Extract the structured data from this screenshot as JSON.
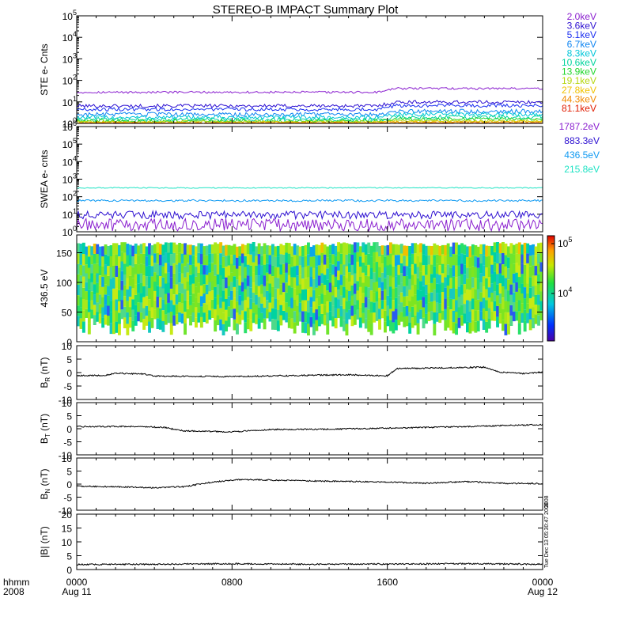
{
  "title": "STEREO-B IMPACT Summary Plot",
  "chart_data": [
    {
      "type": "line",
      "name": "ste",
      "ylabel": "STE e- Cnts",
      "yscale": "log",
      "ylim": [
        1,
        100000
      ],
      "yticks": [
        {
          "base": "10",
          "exp": "0"
        },
        {
          "base": "10",
          "exp": "1"
        },
        {
          "base": "10",
          "exp": "2"
        },
        {
          "base": "10",
          "exp": "3"
        },
        {
          "base": "10",
          "exp": "4"
        },
        {
          "base": "10",
          "exp": "5"
        }
      ],
      "series": [
        {
          "name": "2.0keV",
          "color": "#8a1fcf",
          "level": 28,
          "rise": 1.5,
          "noise": 0.05
        },
        {
          "name": "3.6keV",
          "color": "#2c0fd1",
          "level": 6.5,
          "rise": 1.5,
          "noise": 0.08
        },
        {
          "name": "5.1keV",
          "color": "#1a2ef0",
          "level": 4.5,
          "rise": 1.5,
          "noise": 0.08
        },
        {
          "name": "6.7keV",
          "color": "#0f85f2",
          "level": 2.6,
          "rise": 1.4,
          "noise": 0.1
        },
        {
          "name": "8.3keV",
          "color": "#00c6d9",
          "level": 1.9,
          "rise": 1.4,
          "noise": 0.1
        },
        {
          "name": "10.6keV",
          "color": "#00d49c",
          "level": 1.5,
          "rise": 1.3,
          "noise": 0.1
        },
        {
          "name": "13.9keV",
          "color": "#1ed62a",
          "level": 1.3,
          "rise": 1.2,
          "noise": 0.08
        },
        {
          "name": "19.1keV",
          "color": "#b6d60f",
          "level": 1.2,
          "rise": 1.1,
          "noise": 0.05
        },
        {
          "name": "27.8keV",
          "color": "#f0c200",
          "level": 1.1,
          "rise": 1.1,
          "noise": 0.04
        },
        {
          "name": "44.3keV",
          "color": "#f08a00",
          "level": 1.05,
          "rise": 1.05,
          "noise": 0.03
        },
        {
          "name": "81.1keV",
          "color": "#e01c00",
          "level": 1.0,
          "rise": 1.0,
          "noise": 0.02
        }
      ]
    },
    {
      "type": "line",
      "name": "swea",
      "ylabel": "SWEA e- cnts",
      "yscale": "log",
      "ylim": [
        1,
        1000000
      ],
      "yticks": [
        {
          "base": "10",
          "exp": "0"
        },
        {
          "base": "10",
          "exp": "1"
        },
        {
          "base": "10",
          "exp": "2"
        },
        {
          "base": "10",
          "exp": "3"
        },
        {
          "base": "10",
          "exp": "4"
        },
        {
          "base": "10",
          "exp": "5"
        },
        {
          "base": "10",
          "exp": "6"
        }
      ],
      "series": [
        {
          "name": "1787.2eV",
          "color": "#8a1fcf",
          "level": 2.5,
          "noise": 0.35
        },
        {
          "name": "883.3eV",
          "color": "#2c0fd1",
          "level": 9,
          "noise": 0.22
        },
        {
          "name": "436.5eV",
          "color": "#0f9af2",
          "level": 60,
          "noise": 0.06
        },
        {
          "name": "215.8eV",
          "color": "#1fe3c4",
          "level": 320,
          "noise": 0.03
        }
      ]
    },
    {
      "type": "heatmap",
      "name": "pad",
      "ylabel": "436.5 eV",
      "ylim": [
        0,
        180
      ],
      "yticks": [
        "0",
        "50",
        "100",
        "150"
      ],
      "colorbar": {
        "ticks": [
          {
            "base": "10",
            "exp": "5"
          },
          {
            "base": "10",
            "exp": "4"
          }
        ]
      }
    },
    {
      "type": "line",
      "name": "br",
      "ylabel": "B",
      "ylabel_sub": "R",
      "ylabel_unit": "(nT)",
      "ylim": [
        -10,
        10
      ],
      "yticks": [
        "10",
        "5",
        "0",
        "-5",
        "-10"
      ],
      "keypoints": [
        [
          0,
          -1.2
        ],
        [
          1.5,
          -1.0
        ],
        [
          2,
          -0.2
        ],
        [
          3.5,
          -0.6
        ],
        [
          4,
          -1.3
        ],
        [
          8,
          -1.5
        ],
        [
          12,
          -1.0
        ],
        [
          14,
          -0.8
        ],
        [
          16,
          -1.2
        ],
        [
          16.5,
          1.5
        ],
        [
          21,
          2.0
        ],
        [
          21.8,
          0.2
        ],
        [
          23,
          -0.4
        ],
        [
          24,
          0.2
        ]
      ]
    },
    {
      "type": "line",
      "name": "bt",
      "ylabel": "B",
      "ylabel_sub": "T",
      "ylabel_unit": "(nT)",
      "ylim": [
        -10,
        10
      ],
      "yticks": [
        "10",
        "5",
        "0",
        "-5",
        "-10"
      ],
      "keypoints": [
        [
          0,
          0.8
        ],
        [
          3,
          0.9
        ],
        [
          4.5,
          0.5
        ],
        [
          5.5,
          -0.8
        ],
        [
          8,
          -1.2
        ],
        [
          10,
          -0.3
        ],
        [
          13,
          -0.2
        ],
        [
          16,
          0.2
        ],
        [
          20,
          0.8
        ],
        [
          24,
          1.6
        ]
      ]
    },
    {
      "type": "line",
      "name": "bn",
      "ylabel": "B",
      "ylabel_sub": "N",
      "ylabel_unit": "(nT)",
      "ylim": [
        -10,
        10
      ],
      "yticks": [
        "10",
        "5",
        "0",
        "-5",
        "-10"
      ],
      "keypoints": [
        [
          0,
          -0.8
        ],
        [
          2,
          -1.0
        ],
        [
          4,
          -1.4
        ],
        [
          5.5,
          -1.0
        ],
        [
          7,
          0.8
        ],
        [
          8.5,
          1.8
        ],
        [
          12,
          1.2
        ],
        [
          16,
          0.8
        ],
        [
          18,
          0.3
        ],
        [
          20,
          1.0
        ],
        [
          22,
          0.3
        ],
        [
          24,
          0.2
        ]
      ]
    },
    {
      "type": "line",
      "name": "bmag",
      "ylabel": "|B|",
      "ylabel_unit": "(nT)",
      "ylim": [
        0,
        20
      ],
      "yticks": [
        "20",
        "15",
        "10",
        "5",
        "0"
      ],
      "keypoints": [
        [
          0,
          1.8
        ],
        [
          4,
          1.9
        ],
        [
          8,
          2.1
        ],
        [
          12,
          1.9
        ],
        [
          16,
          2.0
        ],
        [
          20,
          2.1
        ],
        [
          24,
          1.9
        ]
      ]
    }
  ],
  "xaxis": {
    "range_hours": [
      0,
      24
    ],
    "row1_label": "hhmm",
    "row2_label": "2008",
    "ticks": [
      {
        "hour": 0,
        "label": "0000",
        "sub": "Aug 11"
      },
      {
        "hour": 8,
        "label": "0800",
        "sub": ""
      },
      {
        "hour": 16,
        "label": "1600",
        "sub": ""
      },
      {
        "hour": 24,
        "label": "0000",
        "sub": "Aug 12"
      }
    ]
  },
  "side_note": {
    "line1": "Tue Dec 13 05:30:47 2008",
    "line2": "2008"
  }
}
